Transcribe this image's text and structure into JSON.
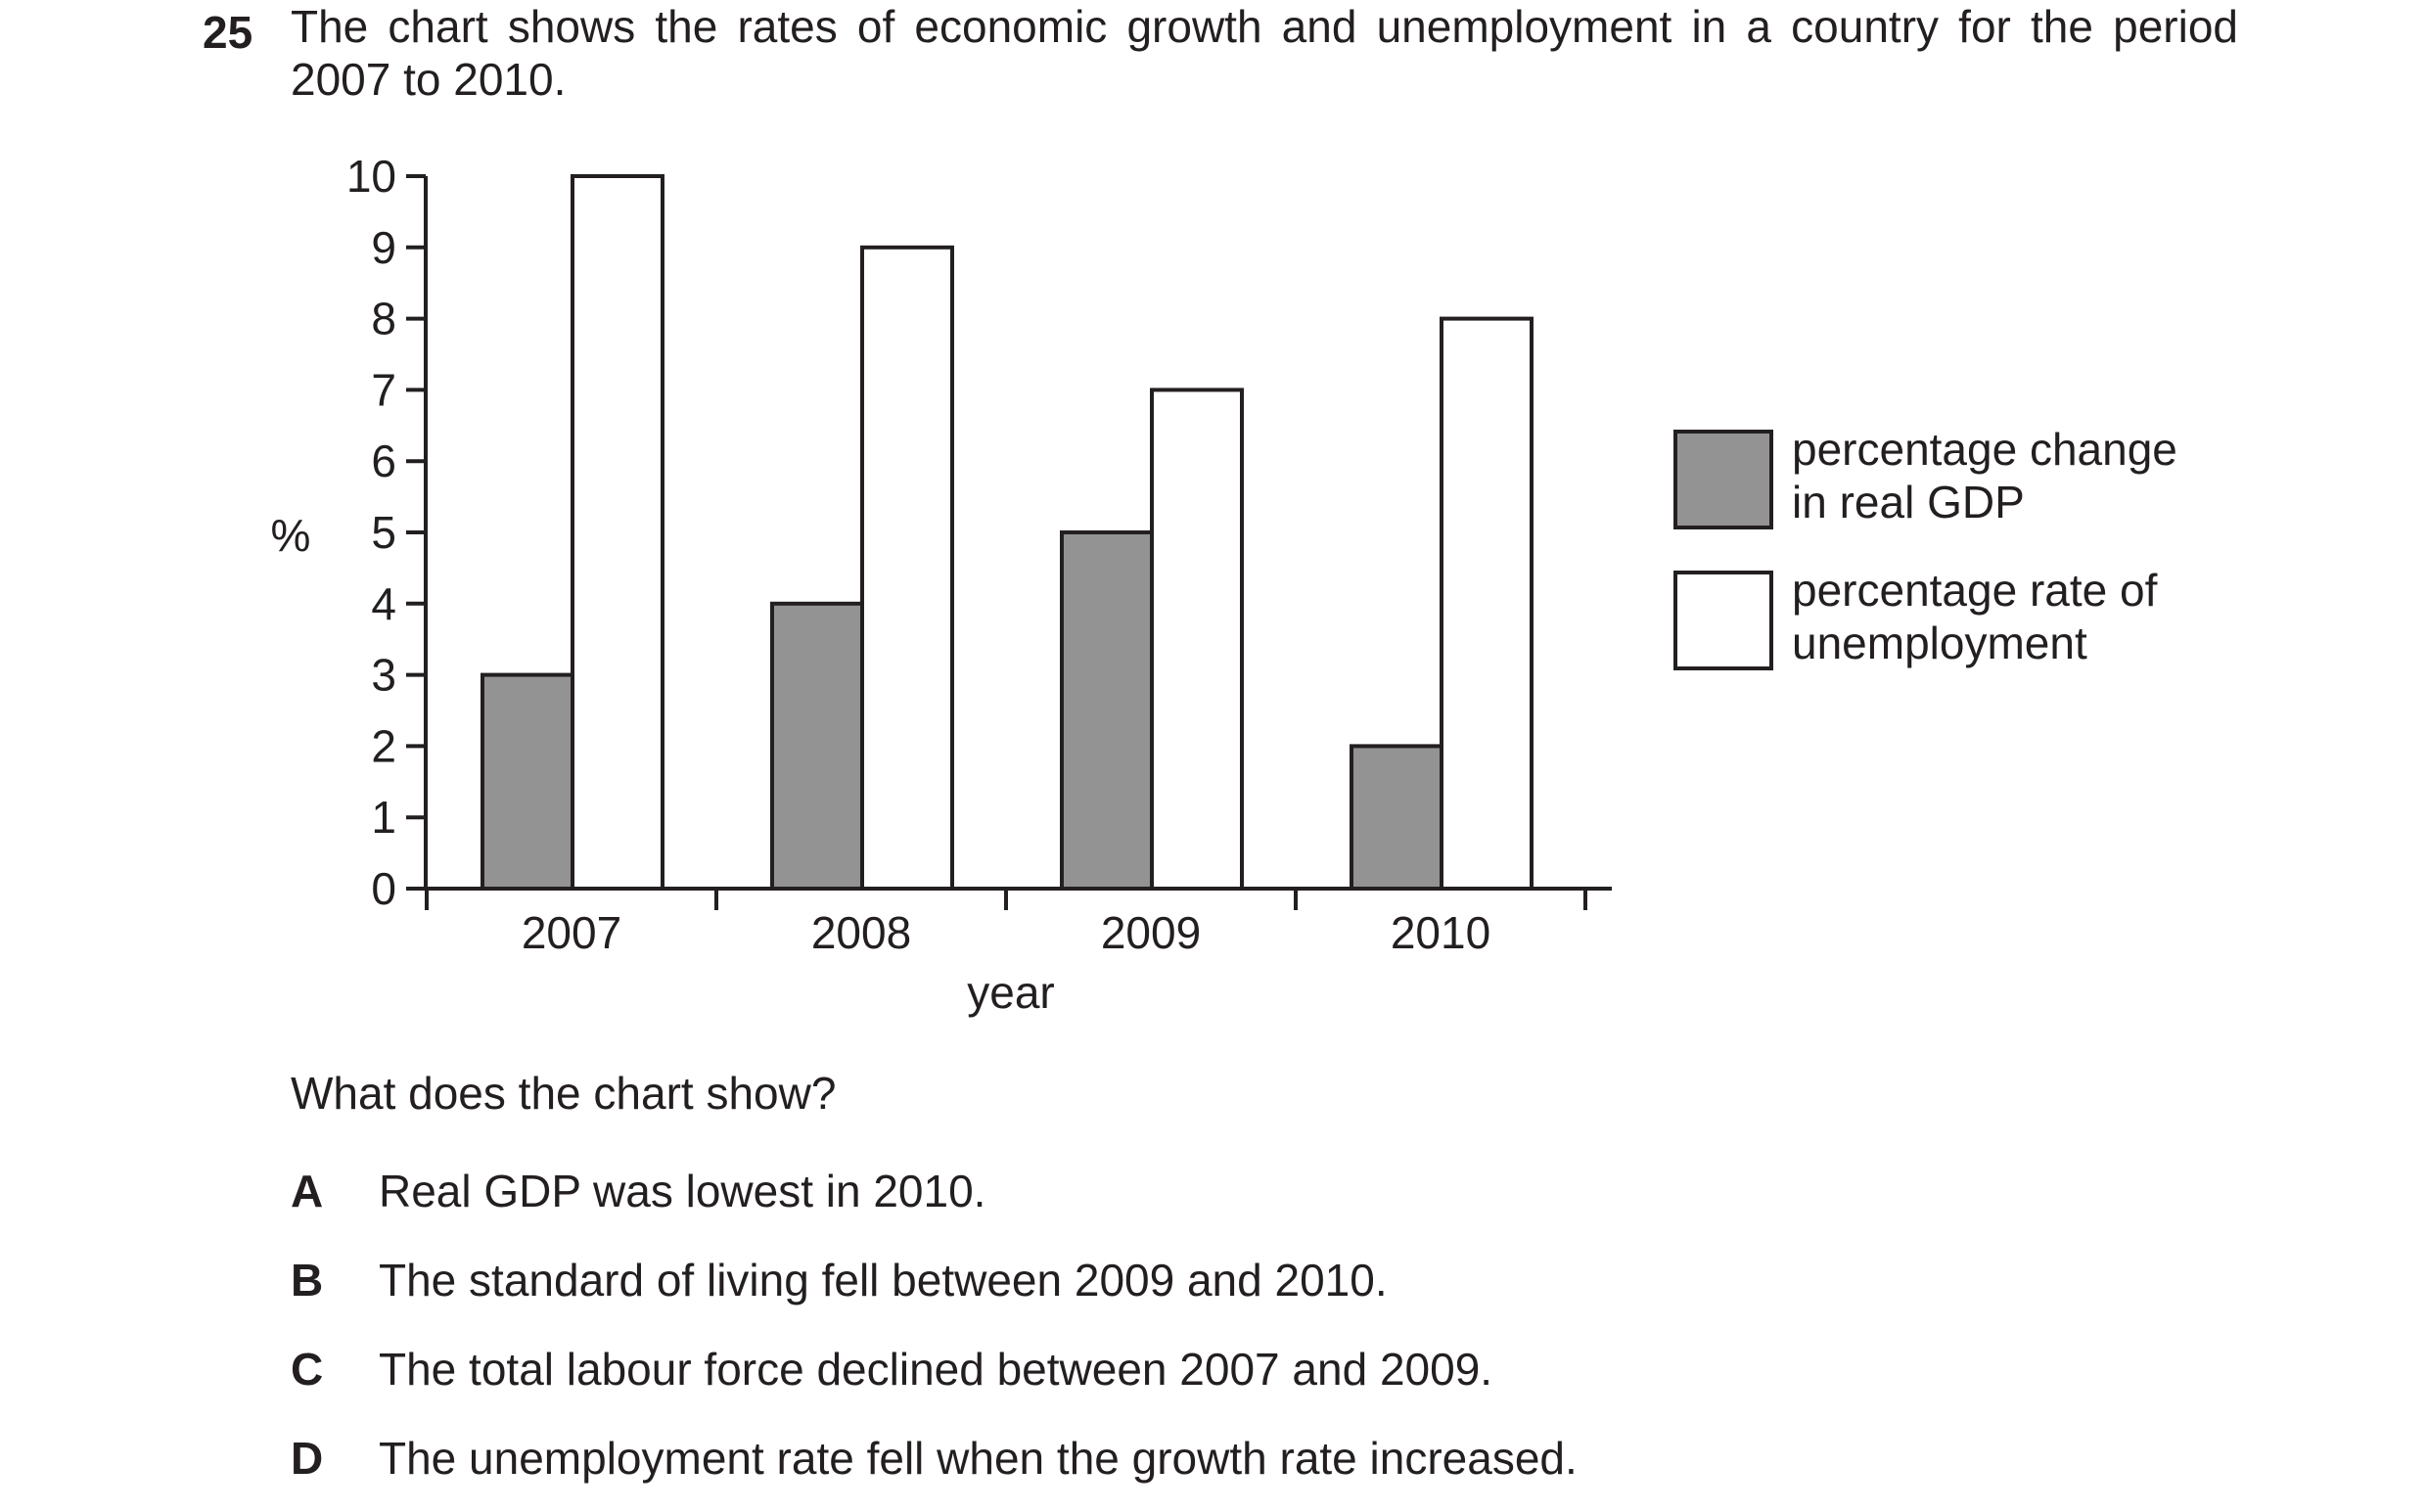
{
  "question": {
    "number": "25",
    "stem_line1": "The chart shows the rates of economic growth and unemployment in a country for the period",
    "stem_line2": "2007 to 2010.",
    "prompt": "What does the chart show?",
    "options": [
      {
        "letter": "A",
        "text": "Real GDP was lowest in 2010."
      },
      {
        "letter": "B",
        "text": "The standard of living fell between 2009 and 2010."
      },
      {
        "letter": "C",
        "text": "The total labour force declined between 2007 and 2009."
      },
      {
        "letter": "D",
        "text": "The unemployment rate fell when the growth rate increased."
      }
    ]
  },
  "chart_data": {
    "type": "bar",
    "categories": [
      "2007",
      "2008",
      "2009",
      "2010"
    ],
    "series": [
      {
        "name": "percentage change in real GDP",
        "legend_lines": [
          "percentage change",
          "in real GDP"
        ],
        "values": [
          3,
          4,
          5,
          2
        ],
        "color": "#939393"
      },
      {
        "name": "percentage rate of unemployment",
        "legend_lines": [
          "percentage rate of",
          "unemployment"
        ],
        "values": [
          10,
          9,
          7,
          8
        ],
        "color": "#ffffff"
      }
    ],
    "xlabel": "year",
    "ylabel": "%",
    "ylim": [
      0,
      10
    ],
    "yticks": [
      0,
      1,
      2,
      3,
      4,
      5,
      6,
      7,
      8,
      9,
      10
    ],
    "grid": false,
    "legend_position": "right"
  }
}
